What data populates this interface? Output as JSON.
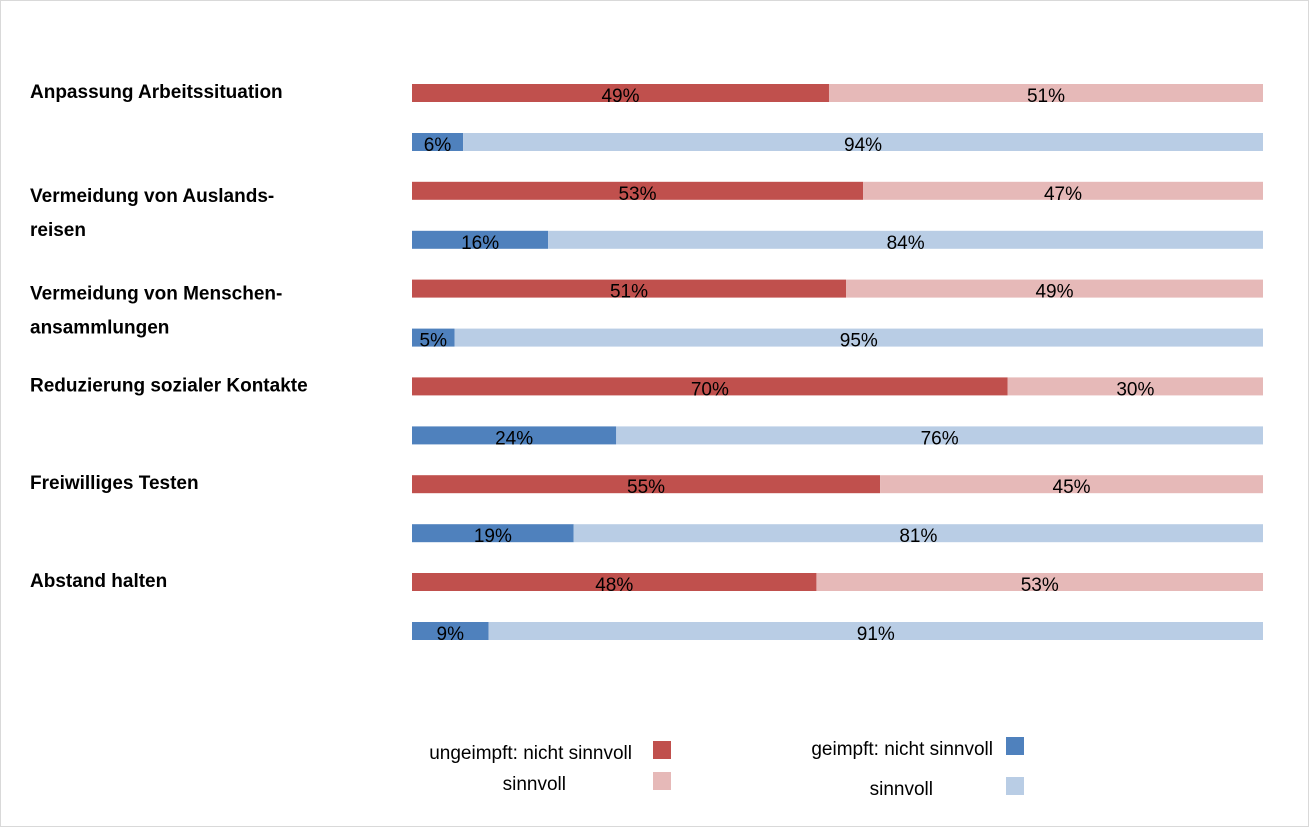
{
  "chart_data": {
    "type": "stacked-bar-100",
    "categories": [
      [
        "Anpassung Arbeitssituation"
      ],
      [
        "Vermeidung von Auslands-",
        "reisen"
      ],
      [
        "Vermeidung von Menschen-",
        "ansammlungen"
      ],
      [
        "Reduzierung sozialer Kontakte"
      ],
      [
        "Freiwilliges Testen"
      ],
      [
        "Abstand halten"
      ]
    ],
    "category_colors": [
      "#000000",
      "#000000",
      "#000000",
      "#000000",
      "#000000",
      "#595959"
    ],
    "series": [
      {
        "name": "ungeimpft: nicht sinnvoll",
        "color": "#c0504d",
        "values": [
          49,
          53,
          51,
          70,
          55,
          48
        ],
        "value_labels": [
          "49%",
          "53%",
          "51%",
          "70%",
          "55%",
          "48%"
        ]
      },
      {
        "name": "sinnvoll",
        "color": "#e6b9b8",
        "values": [
          51,
          47,
          49,
          30,
          45,
          53
        ],
        "value_labels": [
          "51%",
          "47%",
          "49%",
          "30%",
          "45%",
          "53%"
        ]
      },
      {
        "name": "geimpft: nicht sinnvoll",
        "color": "#4f81bd",
        "values": [
          6,
          16,
          5,
          24,
          19,
          9
        ],
        "value_labels": [
          "6%",
          "16%",
          "5%",
          "24%",
          "19%",
          "9%"
        ]
      },
      {
        "name": "sinnvoll",
        "color": "#b9cde5",
        "values": [
          94,
          84,
          95,
          76,
          81,
          91
        ],
        "value_labels": [
          "94%",
          "84%",
          "95%",
          "76%",
          "81%",
          "91%"
        ]
      }
    ]
  }
}
